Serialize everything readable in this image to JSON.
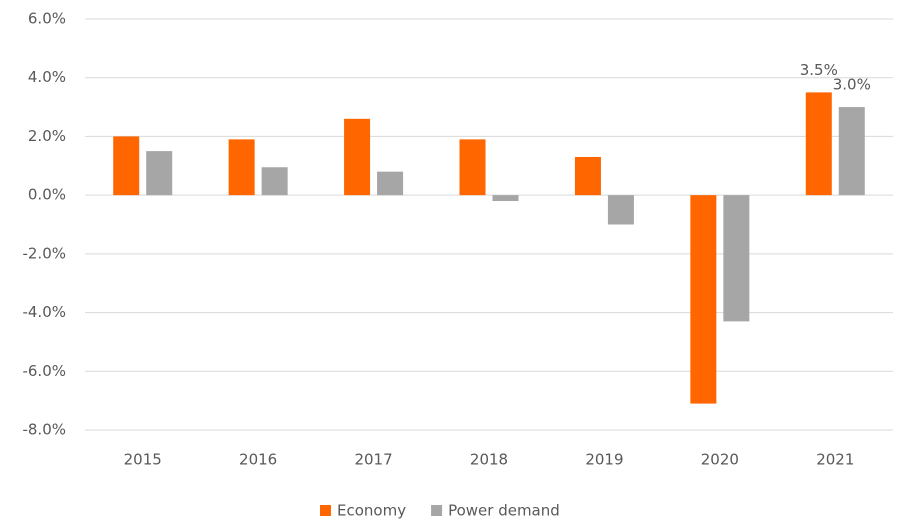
{
  "chart_data": {
    "type": "bar",
    "categories": [
      "2015",
      "2016",
      "2017",
      "2018",
      "2019",
      "2020",
      "2021"
    ],
    "series": [
      {
        "name": "Economy",
        "color": "#ff6600",
        "values": [
          2.0,
          1.9,
          2.6,
          1.9,
          1.3,
          -7.1,
          3.5
        ],
        "value_labels": [
          null,
          null,
          null,
          null,
          null,
          null,
          "3.5%"
        ]
      },
      {
        "name": "Power demand",
        "color": "#a6a6a6",
        "values": [
          1.5,
          0.95,
          0.8,
          -0.2,
          -1.0,
          -4.3,
          3.0
        ],
        "value_labels": [
          null,
          null,
          null,
          null,
          null,
          null,
          "3.0%"
        ]
      }
    ],
    "ylim": [
      -8,
      6
    ],
    "yticks": [
      {
        "value": -8,
        "label": "-8.0%"
      },
      {
        "value": -6,
        "label": "-6.0%"
      },
      {
        "value": -4,
        "label": "-4.0%"
      },
      {
        "value": -2,
        "label": "-2.0%"
      },
      {
        "value": 0,
        "label": "0.0%"
      },
      {
        "value": 2,
        "label": "2.0%"
      },
      {
        "value": 4,
        "label": "4.0%"
      },
      {
        "value": 6,
        "label": "6.0%"
      }
    ],
    "grid": true,
    "legend": "bottom"
  }
}
